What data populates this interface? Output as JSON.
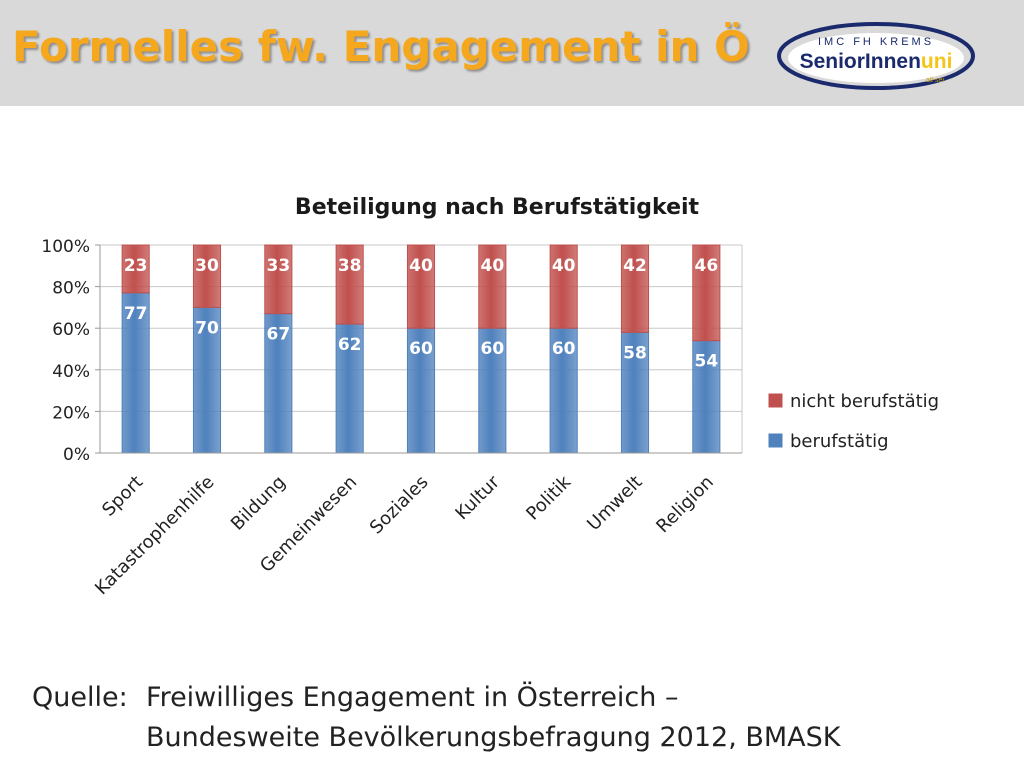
{
  "slide": {
    "title": "Formelles fw. Engagement in Ö"
  },
  "logo": {
    "top_text": "IMC FH KREMS",
    "main_text_a": "SeniorInnen",
    "main_text_b": "uni",
    "tagline": "alt sei"
  },
  "source": {
    "label": "Quelle:",
    "line1": "Freiwilliges Engagement in Österreich –",
    "line2": "Bundesweite Bevölkerungsbefragung 2012, BMASK"
  },
  "colors": {
    "title": "#f5a81e",
    "header_band": "#d9d9d9",
    "berufstaetig": "#4f81bd",
    "nicht_berufstaetig": "#c0504d",
    "logo_navy": "#1a2a6c",
    "logo_yellow": "#f5c518"
  },
  "chart_data": {
    "type": "bar",
    "stacked": "100%",
    "title": "Beteiligung nach Berufstätigkeit",
    "xlabel": "",
    "ylabel": "",
    "ylim": [
      0,
      100
    ],
    "yticks": [
      "0%",
      "20%",
      "40%",
      "60%",
      "80%",
      "100%"
    ],
    "grid": true,
    "legend_position": "right",
    "categories": [
      "Sport",
      "Katastrophenhilfe",
      "Bildung",
      "Gemeinwesen",
      "Soziales",
      "Kultur",
      "Politik",
      "Umwelt",
      "Religion"
    ],
    "series": [
      {
        "name": "berufstätig",
        "color": "#4f81bd",
        "values": [
          77,
          70,
          67,
          62,
          60,
          60,
          60,
          58,
          54
        ]
      },
      {
        "name": "nicht berufstätig",
        "color": "#c0504d",
        "values": [
          23,
          30,
          33,
          38,
          40,
          40,
          40,
          42,
          46
        ]
      }
    ],
    "legend_order": [
      "nicht berufstätig",
      "berufstätig"
    ]
  }
}
